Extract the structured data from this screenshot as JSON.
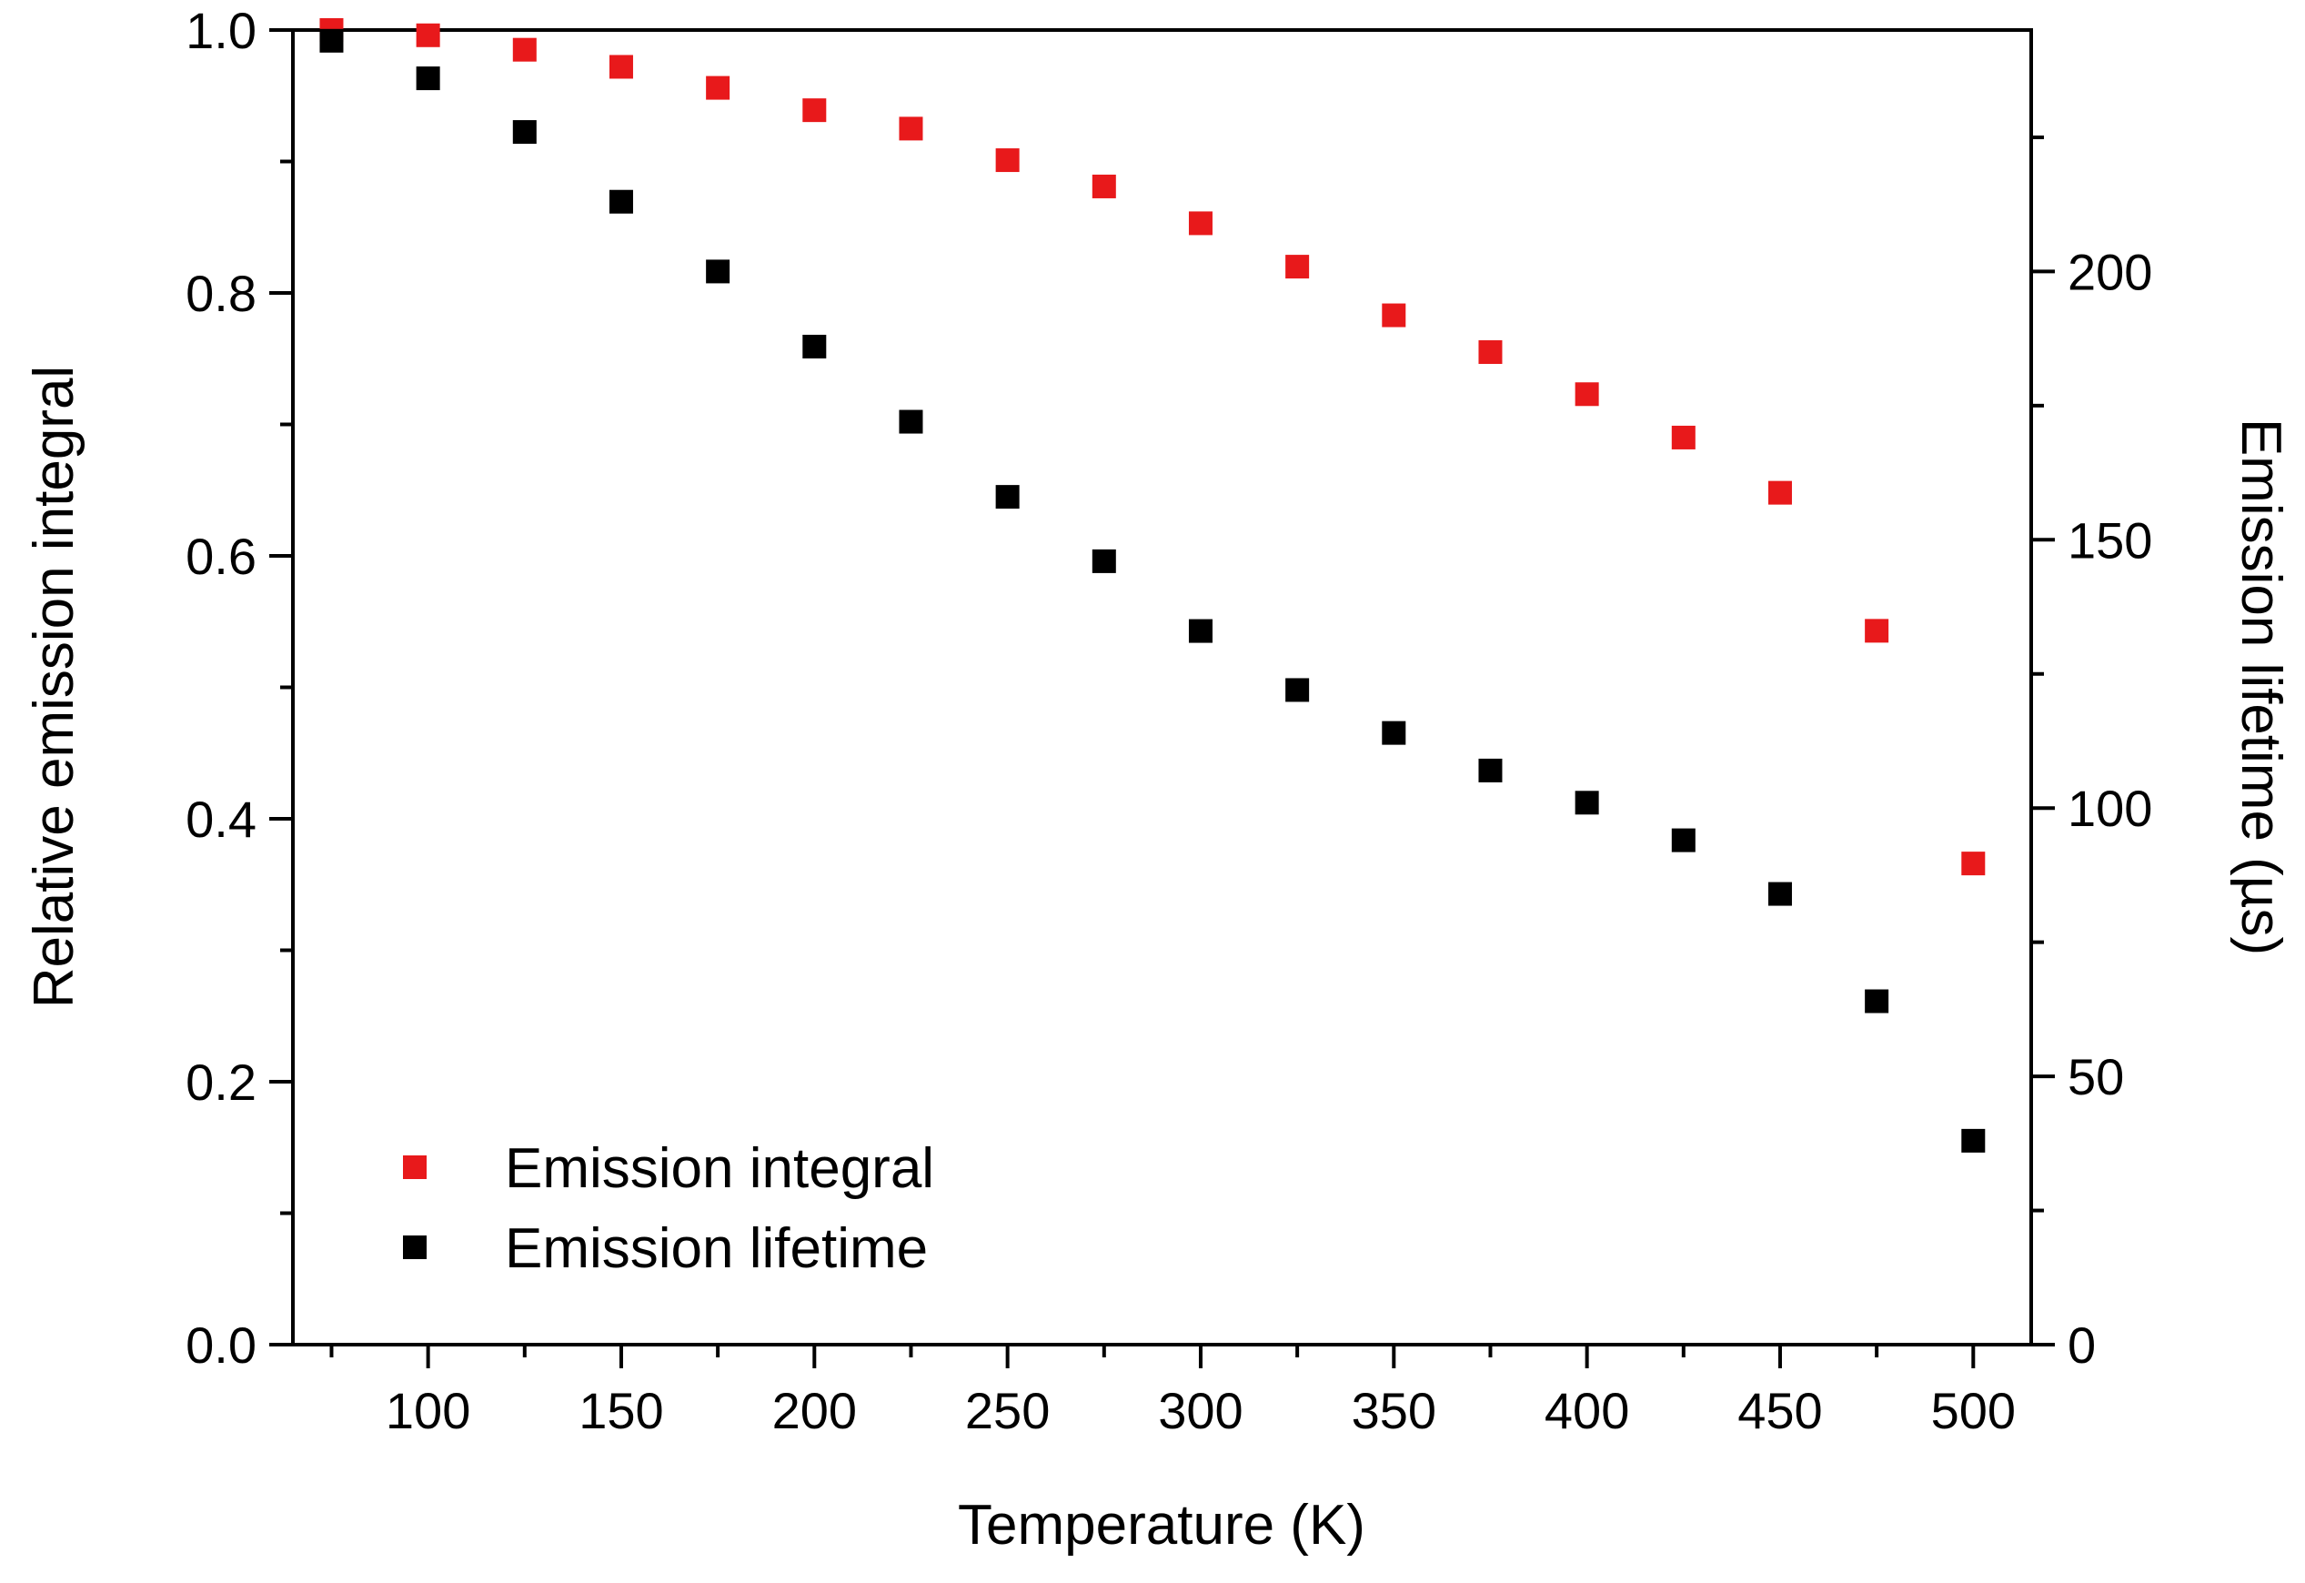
{
  "chart_data": {
    "type": "scatter",
    "xlabel": "Temperature (K)",
    "ylabel_left": "Relative emission integral",
    "ylabel_right": "Emission lifetime (µs)",
    "xlim": [
      65,
      515
    ],
    "ylim_left": [
      0,
      1.0
    ],
    "ylim_right": [
      0,
      245
    ],
    "x_ticks": [
      100,
      150,
      200,
      250,
      300,
      350,
      400,
      450,
      500
    ],
    "x_minor_ticks": [
      75,
      125,
      175,
      225,
      275,
      325,
      375,
      425,
      475
    ],
    "y_left_ticks": [
      0.0,
      0.2,
      0.4,
      0.6,
      0.8,
      1.0
    ],
    "y_left_tick_labels": [
      "0.0",
      "0.2",
      "0.4",
      "0.6",
      "0.8",
      "1.0"
    ],
    "y_left_minor_ticks": [
      0.1,
      0.3,
      0.5,
      0.7,
      0.9
    ],
    "y_right_ticks": [
      0,
      50,
      100,
      150,
      200
    ],
    "y_right_minor_ticks": [
      25,
      75,
      125,
      175,
      225
    ],
    "legend_position": "bottom-left",
    "x": [
      75,
      100,
      125,
      150,
      175,
      200,
      225,
      250,
      275,
      300,
      325,
      350,
      375,
      400,
      425,
      450,
      475,
      500
    ],
    "series": [
      {
        "name": "Emission integral",
        "axis": "left",
        "color": "#e8191b",
        "values": [
          1.0,
          0.996,
          0.985,
          0.972,
          0.956,
          0.939,
          0.925,
          0.901,
          0.881,
          0.853,
          0.82,
          0.783,
          0.755,
          0.723,
          0.69,
          0.648,
          0.543,
          0.366
        ]
      },
      {
        "name": "Emission lifetime",
        "axis": "right",
        "color": "#000000",
        "values": [
          243,
          236,
          226,
          213,
          200,
          186,
          172,
          158,
          146,
          133,
          122,
          114,
          107,
          101,
          94,
          84,
          64,
          38
        ]
      }
    ]
  }
}
